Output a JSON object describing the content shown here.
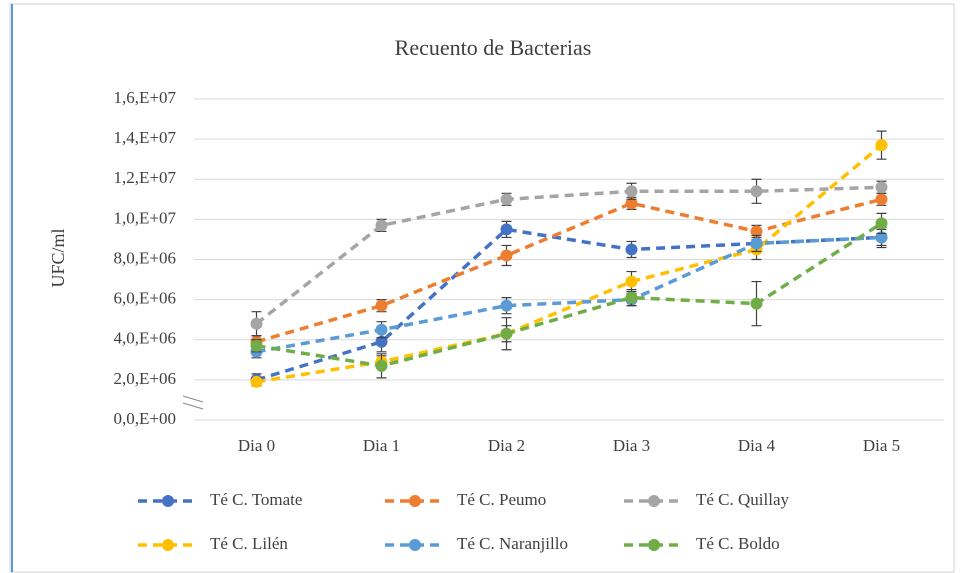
{
  "chart_data": {
    "type": "line",
    "title": "Recuento  de Bacterias",
    "y_label": "UFC/ml",
    "categories": [
      "Dia 0",
      "Dia 1",
      "Dia 2",
      "Dia 3",
      "Dia 4",
      "Dia 5"
    ],
    "series": [
      {
        "name": "Té C. Tomate",
        "color": "#4472c4",
        "values": [
          2000000,
          3900000,
          9500000,
          8500000,
          8800000,
          9100000
        ],
        "errors": [
          300000,
          500000,
          400000,
          400000,
          400000,
          500000
        ]
      },
      {
        "name": "Té C. Peumo",
        "color": "#ed7d31",
        "values": [
          3900000,
          5700000,
          8200000,
          10800000,
          9400000,
          11000000
        ],
        "errors": [
          300000,
          300000,
          500000,
          300000,
          300000,
          300000
        ]
      },
      {
        "name": "Té C. Quillay",
        "color": "#a5a5a5",
        "values": [
          4800000,
          9700000,
          11000000,
          11400000,
          11400000,
          11600000
        ],
        "errors": [
          600000,
          300000,
          300000,
          400000,
          600000,
          300000
        ]
      },
      {
        "name": "Té C. Lilén",
        "color": "#ffc000",
        "values": [
          1900000,
          2900000,
          4300000,
          6900000,
          8500000,
          13700000
        ],
        "errors": [
          200000,
          300000,
          400000,
          500000,
          500000,
          700000
        ]
      },
      {
        "name": "Té C. Naranjillo",
        "color": "#5b9bd5",
        "values": [
          3400000,
          4500000,
          5700000,
          6000000,
          8800000,
          9100000
        ],
        "errors": [
          300000,
          400000,
          400000,
          300000,
          400000,
          400000
        ]
      },
      {
        "name": "Té C. Boldo",
        "color": "#70ad47",
        "values": [
          3700000,
          2700000,
          4300000,
          6100000,
          5800000,
          9800000
        ],
        "errors": [
          300000,
          600000,
          800000,
          400000,
          1100000,
          500000
        ]
      }
    ],
    "ylim": [
      0,
      16000000
    ],
    "yticks": [
      {
        "value": 0,
        "label": "0,0,E+00"
      },
      {
        "value": 2000000,
        "label": "2,0,E+06"
      },
      {
        "value": 4000000,
        "label": "4,0,E+06"
      },
      {
        "value": 6000000,
        "label": "6,0,E+06"
      },
      {
        "value": 8000000,
        "label": "8,0,E+06"
      },
      {
        "value": 10000000,
        "label": "1,0,E+07"
      },
      {
        "value": 12000000,
        "label": "1,2,E+07"
      },
      {
        "value": 14000000,
        "label": "1,4,E+07"
      },
      {
        "value": 16000000,
        "label": "1,6,E+07"
      }
    ],
    "grid": true,
    "legend": "bottom"
  }
}
